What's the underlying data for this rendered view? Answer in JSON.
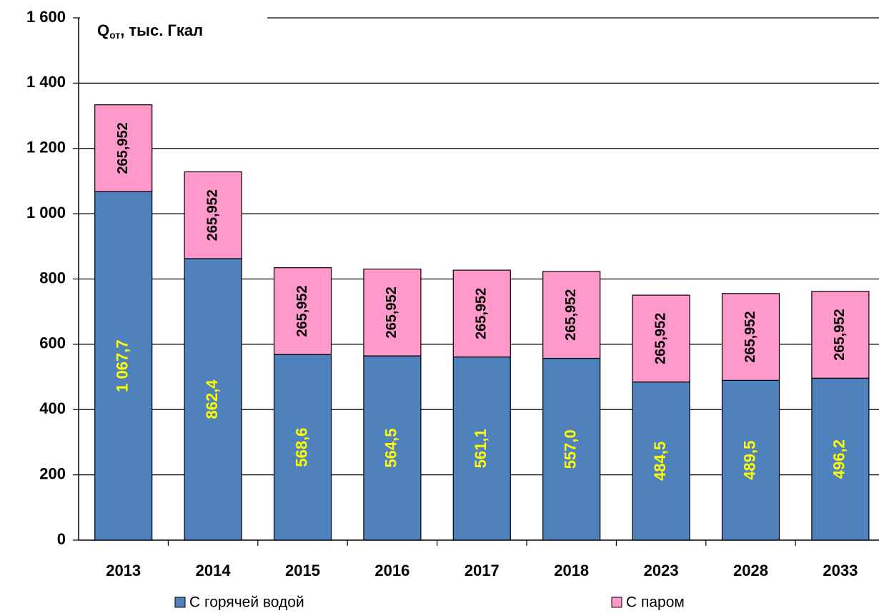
{
  "chart_data": {
    "type": "stacked_bar",
    "title_parts": [
      "Q",
      "от",
      ", тыс. Гкал"
    ],
    "categories": [
      "2013",
      "2014",
      "2015",
      "2016",
      "2017",
      "2018",
      "2023",
      "2028",
      "2033"
    ],
    "series": [
      {
        "name": "С горячей водой",
        "color": "#4f81bd",
        "label_color": "#ffff00",
        "values": [
          1067.7,
          862.4,
          568.6,
          564.5,
          561.1,
          557.0,
          484.5,
          489.5,
          496.2
        ],
        "value_labels": [
          "1 067,7",
          "862,4",
          "568,6",
          "564,5",
          "561,1",
          "557,0",
          "484,5",
          "489,5",
          "496,2"
        ]
      },
      {
        "name": "С паром",
        "color": "#ff99cc",
        "label_color": "#000000",
        "values": [
          265.952,
          265.952,
          265.952,
          265.952,
          265.952,
          265.952,
          265.952,
          265.952,
          265.952
        ],
        "value_labels": [
          "265,952",
          "265,952",
          "265,952",
          "265,952",
          "265,952",
          "265,952",
          "265,952",
          "265,952",
          "265,952"
        ]
      }
    ],
    "ylim": [
      0,
      1600
    ],
    "yticks": [
      0,
      200,
      400,
      600,
      800,
      {
        "value": 1000,
        "label": "1 000"
      },
      {
        "value": 1200,
        "label": "1 200"
      },
      {
        "value": 1400,
        "label": "1 400"
      },
      {
        "value": 1600,
        "label": "1 600"
      }
    ],
    "grid": true,
    "legend": "bottom"
  }
}
